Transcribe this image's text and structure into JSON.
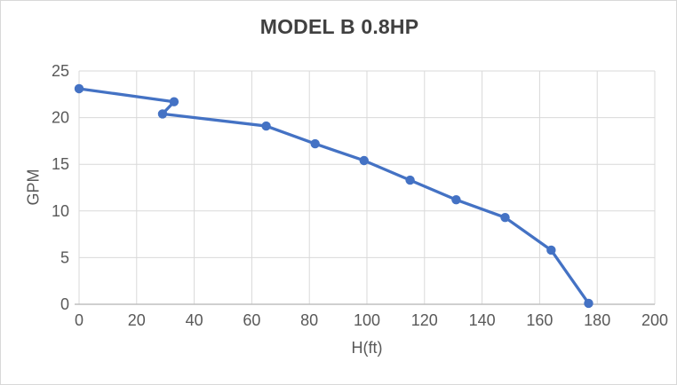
{
  "chart_data": {
    "type": "line",
    "title": "MODEL B 0.8HP",
    "xlabel": "H(ft)",
    "ylabel": "GPM",
    "xlim": [
      0,
      200
    ],
    "ylim": [
      0,
      25
    ],
    "xticks": [
      0,
      20,
      40,
      60,
      80,
      100,
      120,
      140,
      160,
      180,
      200
    ],
    "yticks": [
      0,
      5,
      10,
      15,
      20,
      25
    ],
    "grid": true,
    "legend_position": "none",
    "series": [
      {
        "name": "MODEL B 0.8HP",
        "marker": "circle",
        "line_color": "#4472C4",
        "x": [
          0,
          33,
          29,
          65,
          82,
          99,
          115,
          131,
          148,
          164,
          177
        ],
        "y": [
          23.1,
          21.7,
          20.4,
          19.1,
          17.2,
          15.4,
          13.3,
          11.2,
          9.3,
          5.8,
          0.1
        ]
      }
    ],
    "colors": {
      "line": "#4472C4",
      "gridline": "#D9D9D9",
      "axis_line": "#BFBFBF",
      "tick_text": "#595959",
      "title_text": "#404040",
      "background": "#FFFFFF",
      "border": "#D8D8D8"
    }
  }
}
